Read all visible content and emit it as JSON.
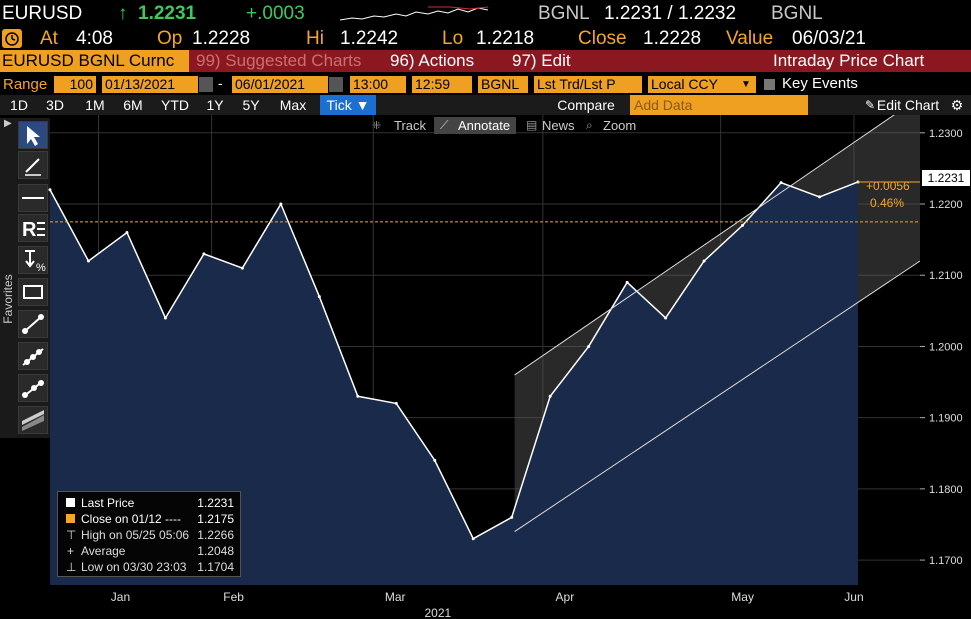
{
  "header": {
    "ticker": "EURUSD",
    "arrow": "↑",
    "last": "1.2231",
    "change": "+.0003",
    "source": "BGNL",
    "bid_ask": "1.2231 / 1.2232",
    "source2": "BGNL",
    "at_label": "At",
    "time": "4:08",
    "op_label": "Op",
    "op": "1.2228",
    "hi_label": "Hi",
    "hi": "1.2242",
    "lo_label": "Lo",
    "lo": "1.2218",
    "close_label": "Close",
    "close": "1.2228",
    "value_label": "Value",
    "value_date": "06/03/21"
  },
  "menubar": {
    "security": "EURUSD BGNL Curnc",
    "suggested": "99) Suggested Charts",
    "actions": "96) Actions",
    "edit": "97) Edit",
    "title": "Intraday Price Chart"
  },
  "controls": {
    "range_label": "Range",
    "range_value": "100",
    "start_date": "01/13/2021",
    "dash": "-",
    "end_date": "06/01/2021",
    "start_time": "13:00",
    "end_time": "12:59",
    "source": "BGNL",
    "mode": "Lst Trd/Lst P",
    "ccy": "Local CCY",
    "key_events": "Key Events"
  },
  "periods": {
    "items": [
      "1D",
      "3D",
      "1M",
      "6M",
      "YTD",
      "1Y",
      "5Y",
      "Max"
    ],
    "tick": "Tick ▼",
    "compare": "Compare",
    "add_data": "Add Data",
    "edit_chart": "Edit Chart"
  },
  "chart_tools": {
    "track": "Track",
    "annotate": "Annotate",
    "news": "News",
    "zoom": "Zoom"
  },
  "sidebar": {
    "favorites": "Favorites"
  },
  "legend": {
    "last_price": "Last Price",
    "last_price_value": "1.2231",
    "close_on": "Close on 01/12 ---- ",
    "close_on_value": "1.2175",
    "high_on": "High on 05/25 05:06",
    "high_on_value": "1.2266",
    "average": "Average",
    "average_value": "1.2048",
    "low_on": "Low on 03/30 23:03",
    "low_on_value": "1.1704"
  },
  "price_tag": {
    "value": "1.2231",
    "delta": "+0.0056",
    "delta_pct": "0.46%"
  },
  "colors": {
    "amber": "#f5a623",
    "green": "#3ec95b",
    "menubar": "#8b1820",
    "area_fill": "#1a2a4a",
    "close_line": "#f5a623"
  },
  "chart_data": {
    "type": "line",
    "series": [
      {
        "name": "Last Price",
        "x": [
          "01/13",
          "01/20",
          "01/27",
          "02/03",
          "02/10",
          "02/17",
          "02/24",
          "03/01",
          "03/08",
          "03/15",
          "03/22",
          "03/29",
          "04/05",
          "04/12",
          "04/19",
          "04/26",
          "05/03",
          "05/10",
          "05/17",
          "05/24",
          "05/31",
          "06/03"
        ],
        "values": [
          1.222,
          1.212,
          1.216,
          1.204,
          1.213,
          1.211,
          1.22,
          1.207,
          1.193,
          1.192,
          1.184,
          1.173,
          1.176,
          1.193,
          1.2,
          1.209,
          1.204,
          1.212,
          1.217,
          1.223,
          1.221,
          1.2231
        ]
      }
    ],
    "reference_line": {
      "label": "Close on 01/12",
      "value": 1.2175
    },
    "channel": {
      "upper": [
        1.196,
        1.235
      ],
      "lower": [
        1.174,
        1.212
      ]
    },
    "y_ticks": [
      "1.2300",
      "1.2200",
      "1.2100",
      "1.2000",
      "1.1900",
      "1.1800",
      "1.1700"
    ],
    "x_ticks": [
      "Jan",
      "Feb",
      "Mar",
      "Apr",
      "May",
      "Jun"
    ],
    "x_year": "2021",
    "ylim": [
      1.1665,
      1.2325
    ],
    "grid": true
  }
}
